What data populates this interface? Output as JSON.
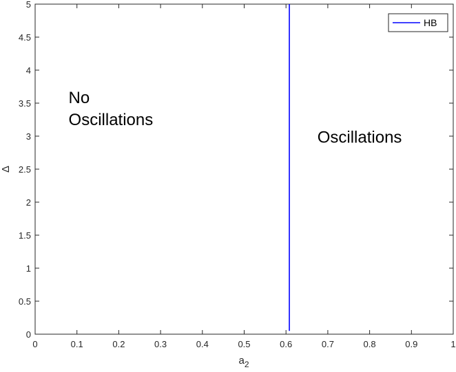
{
  "chart_data": {
    "type": "line",
    "title": "",
    "xlabel": "a",
    "xlabel_subscript": "2",
    "ylabel": "Δ",
    "xlim": [
      0,
      1
    ],
    "ylim": [
      0,
      5
    ],
    "x_ticks": [
      0,
      0.1,
      0.2,
      0.3,
      0.4,
      0.5,
      0.6,
      0.7,
      0.8,
      0.9,
      1
    ],
    "x_tick_labels": [
      "0",
      "0.1",
      "0.2",
      "0.3",
      "0.4",
      "0.5",
      "0.6",
      "0.7",
      "0.8",
      "0.9",
      "1"
    ],
    "y_ticks": [
      0,
      0.5,
      1,
      1.5,
      2,
      2.5,
      3,
      3.5,
      4,
      4.5,
      5
    ],
    "y_tick_labels": [
      "0",
      "0.5",
      "1",
      "1.5",
      "2",
      "2.5",
      "3",
      "3.5",
      "4",
      "4.5",
      "5"
    ],
    "grid": false,
    "legend_position": "top-right",
    "series": [
      {
        "name": "HB",
        "color": "#0000ff",
        "x": [
          0.608,
          0.608
        ],
        "y": [
          0.05,
          5
        ]
      }
    ],
    "annotations": [
      {
        "lines": [
          "No",
          "Oscillations"
        ],
        "x": 0.08,
        "y": 3.5
      },
      {
        "lines": [
          "Oscillations"
        ],
        "x": 0.675,
        "y": 2.9
      }
    ]
  }
}
